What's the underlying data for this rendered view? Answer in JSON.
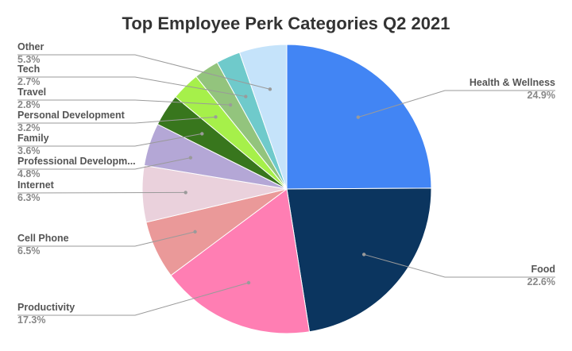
{
  "chart_data": {
    "type": "pie",
    "title": "Top Employee Perk Categories Q2 2021",
    "slices": [
      {
        "label": "Health & Wellness",
        "value": 24.9,
        "value_label": "24.9%",
        "color": "#4285F4"
      },
      {
        "label": "Food",
        "value": 22.6,
        "value_label": "22.6%",
        "color": "#0B355F"
      },
      {
        "label": "Productivity",
        "value": 17.3,
        "value_label": "17.3%",
        "color": "#FF7EB3"
      },
      {
        "label": "Cell Phone",
        "value": 6.5,
        "value_label": "6.5%",
        "color": "#EA9999"
      },
      {
        "label": "Internet",
        "value": 6.3,
        "value_label": "6.3%",
        "color": "#EAD1DC"
      },
      {
        "label": "Professional Developm...",
        "value": 4.8,
        "value_label": "4.8%",
        "color": "#B4A7D6"
      },
      {
        "label": "Family",
        "value": 3.6,
        "value_label": "3.6%",
        "color": "#38761D"
      },
      {
        "label": "Personal Development",
        "value": 3.2,
        "value_label": "3.2%",
        "color": "#A6F04A"
      },
      {
        "label": "Travel",
        "value": 2.8,
        "value_label": "2.8%",
        "color": "#93C47D"
      },
      {
        "label": "Tech",
        "value": 2.7,
        "value_label": "2.7%",
        "color": "#6FCACB"
      },
      {
        "label": "Other",
        "value": 5.3,
        "value_label": "5.3%",
        "color": "#C5E3FA"
      }
    ]
  }
}
